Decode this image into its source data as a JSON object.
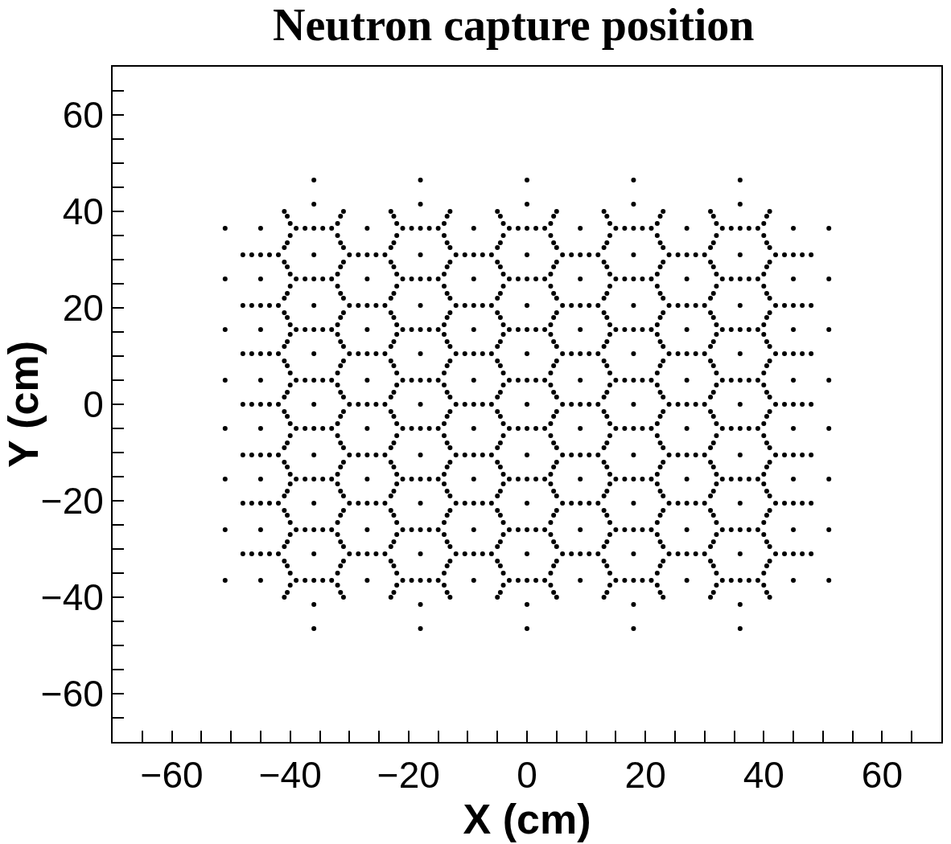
{
  "chart_data": {
    "type": "scatter",
    "title": "Neutron capture position",
    "xlabel": "X (cm)",
    "ylabel": "Y (cm)",
    "xlim": [
      -70,
      70
    ],
    "ylim": [
      -70,
      70
    ],
    "xticks": [
      {
        "value": -65,
        "label": null
      },
      -60,
      {
        "value": -55,
        "label": null
      },
      {
        "value": -50,
        "label": null
      },
      {
        "value": -45,
        "label": null
      },
      -40,
      {
        "value": -35,
        "label": null
      },
      {
        "value": -30,
        "label": null
      },
      {
        "value": -25,
        "label": null
      },
      -20,
      {
        "value": -15,
        "label": null
      },
      {
        "value": -10,
        "label": null
      },
      {
        "value": -5,
        "label": null
      },
      0,
      {
        "value": 5,
        "label": null
      },
      {
        "value": 10,
        "label": null
      },
      {
        "value": 15,
        "label": null
      },
      20,
      {
        "value": 25,
        "label": null
      },
      {
        "value": 30,
        "label": null
      },
      {
        "value": 35,
        "label": null
      },
      40,
      {
        "value": 45,
        "label": null
      },
      {
        "value": 50,
        "label": null
      },
      {
        "value": 55,
        "label": null
      },
      60,
      {
        "value": 65,
        "label": null
      }
    ],
    "yticks": [
      {
        "value": -65,
        "label": null
      },
      -60,
      {
        "value": -55,
        "label": null
      },
      {
        "value": -50,
        "label": null
      },
      {
        "value": -45,
        "label": null
      },
      -40,
      {
        "value": -35,
        "label": null
      },
      {
        "value": -30,
        "label": null
      },
      {
        "value": -25,
        "label": null
      },
      -20,
      {
        "value": -15,
        "label": null
      },
      {
        "value": -10,
        "label": null
      },
      {
        "value": -5,
        "label": null
      },
      0,
      {
        "value": 5,
        "label": null
      },
      {
        "value": 10,
        "label": null
      },
      {
        "value": 15,
        "label": null
      },
      20,
      {
        "value": 25,
        "label": null
      },
      {
        "value": 30,
        "label": null
      },
      {
        "value": 35,
        "label": null
      },
      40,
      {
        "value": 45,
        "label": null
      },
      {
        "value": 50,
        "label": null
      },
      {
        "value": 55,
        "label": null
      },
      60,
      {
        "value": 65,
        "label": null
      }
    ],
    "grid": false,
    "marker": "circle",
    "series": [
      {
        "color": "#000000",
        "x": [
          -48,
          -45,
          -42,
          -48,
          -45,
          -42,
          -48,
          -45,
          -42,
          -48,
          -45,
          -42,
          -48,
          -45,
          -42,
          -48,
          -45,
          -42,
          -48,
          -45,
          -42,
          -45,
          -45,
          -45,
          -45,
          -45,
          -45,
          -45,
          -45,
          -39,
          -36,
          -33,
          -39,
          -36,
          -33,
          -39,
          -36,
          -33,
          -39,
          -36,
          -33,
          -39,
          -36,
          -33,
          -39,
          -36,
          -33,
          -39,
          -36,
          -33,
          -39,
          -36,
          -33,
          -36,
          -36,
          -36,
          -36,
          -36,
          -36,
          -36,
          -36,
          -36,
          -30,
          -27,
          -24,
          -30,
          -27,
          -24,
          -30,
          -27,
          -24,
          -30,
          -27,
          -24,
          -30,
          -27,
          -24,
          -30,
          -27,
          -24,
          -30,
          -27,
          -24,
          -27,
          -27,
          -27,
          -27,
          -27,
          -27,
          -27,
          -27,
          -21,
          -18,
          -15,
          -21,
          -18,
          -15,
          -21,
          -18,
          -15,
          -21,
          -18,
          -15,
          -21,
          -18,
          -15,
          -21,
          -18,
          -15,
          -21,
          -18,
          -15,
          -21,
          -18,
          -15,
          -18,
          -18,
          -18,
          -18,
          -18,
          -18,
          -18,
          -18,
          -18,
          -12,
          -9,
          -6,
          -12,
          -9,
          -6,
          -12,
          -9,
          -6,
          -12,
          -9,
          -6,
          -12,
          -9,
          -6,
          -12,
          -9,
          -6,
          -12,
          -9,
          -6,
          -9,
          -9,
          -9,
          -9,
          -9,
          -9,
          -9,
          -9,
          -3,
          0,
          3,
          -3,
          0,
          3,
          -3,
          0,
          3,
          -3,
          0,
          3,
          -3,
          0,
          3,
          -3,
          0,
          3,
          -3,
          0,
          3,
          -3,
          0,
          3,
          0,
          0,
          0,
          0,
          0,
          0,
          0,
          0,
          0,
          6,
          9,
          12,
          6,
          9,
          12,
          6,
          9,
          12,
          6,
          9,
          12,
          6,
          9,
          12,
          6,
          9,
          12,
          6,
          9,
          12,
          9,
          9,
          9,
          9,
          9,
          9,
          9,
          9,
          15,
          18,
          21,
          15,
          18,
          21,
          15,
          18,
          21,
          15,
          18,
          21,
          15,
          18,
          21,
          15,
          18,
          21,
          15,
          18,
          21,
          15,
          18,
          21,
          18,
          18,
          18,
          18,
          18,
          18,
          18,
          18,
          18,
          24,
          27,
          30,
          24,
          27,
          30,
          24,
          27,
          30,
          24,
          27,
          30,
          24,
          27,
          30,
          24,
          27,
          30,
          24,
          27,
          30,
          27,
          27,
          27,
          27,
          27,
          27,
          27,
          27,
          33,
          36,
          39,
          33,
          36,
          39,
          33,
          36,
          39,
          33,
          36,
          39,
          33,
          36,
          39,
          33,
          36,
          39,
          33,
          36,
          39,
          33,
          36,
          39,
          36,
          36,
          36,
          36,
          36,
          36,
          36,
          36,
          36,
          42,
          45,
          48,
          42,
          45,
          48,
          42,
          45,
          48,
          42,
          45,
          48,
          42,
          45,
          48,
          42,
          45,
          48,
          42,
          45,
          48,
          45,
          45,
          45,
          45,
          45,
          45,
          45,
          45,
          -40.5,
          -40.5,
          -40.5,
          -40.5,
          -40.5,
          -40.5,
          -40.5,
          -40.5,
          -40.5,
          -40.5,
          -40.5,
          -40.5,
          -40.5,
          -40.5,
          -40.5,
          -40.5,
          -31.5,
          -31.5,
          -31.5,
          -31.5,
          -31.5,
          -31.5,
          -31.5,
          -31.5,
          -31.5,
          -31.5,
          -31.5,
          -31.5,
          -31.5,
          -31.5,
          -31.5,
          -31.5,
          -22.5,
          -22.5,
          -22.5,
          -22.5,
          -22.5,
          -22.5,
          -22.5,
          -22.5,
          -22.5,
          -22.5,
          -22.5,
          -22.5,
          -22.5,
          -22.5,
          -22.5,
          -22.5,
          -13.5,
          -13.5,
          -13.5,
          -13.5,
          -13.5,
          -13.5,
          -13.5,
          -13.5,
          -13.5,
          -13.5,
          -13.5,
          -13.5,
          -13.5,
          -13.5,
          -13.5,
          -13.5,
          -4.5,
          -4.5,
          -4.5,
          -4.5,
          -4.5,
          -4.5,
          -4.5,
          -4.5,
          -4.5,
          -4.5,
          -4.5,
          -4.5,
          -4.5,
          -4.5,
          -4.5,
          -4.5,
          4.5,
          4.5,
          4.5,
          4.5,
          4.5,
          4.5,
          4.5,
          4.5,
          4.5,
          4.5,
          4.5,
          4.5,
          4.5,
          4.5,
          4.5,
          4.5,
          13.5,
          13.5,
          13.5,
          13.5,
          13.5,
          13.5,
          13.5,
          13.5,
          13.5,
          13.5,
          13.5,
          13.5,
          13.5,
          13.5,
          13.5,
          13.5,
          22.5,
          22.5,
          22.5,
          22.5,
          22.5,
          22.5,
          22.5,
          22.5,
          22.5,
          22.5,
          22.5,
          22.5,
          22.5,
          22.5,
          22.5,
          22.5,
          31.5,
          31.5,
          31.5,
          31.5,
          31.5,
          31.5,
          31.5,
          31.5,
          31.5,
          31.5,
          31.5,
          31.5,
          31.5,
          31.5,
          31.5,
          31.5,
          40.5,
          40.5,
          40.5,
          40.5,
          40.5,
          40.5,
          40.5,
          40.5,
          40.5,
          40.5,
          40.5,
          40.5,
          40.5,
          40.5,
          40.5,
          40.5,
          -36,
          -36,
          -18,
          -18,
          0,
          0,
          18,
          18,
          36,
          36,
          -51,
          -51,
          -51,
          -51,
          -51,
          -51,
          -51,
          -51,
          51,
          51,
          51,
          51,
          51,
          51,
          51,
          51,
          -46.5,
          -43.5,
          -46.5,
          -43.5,
          -46.5,
          -43.5,
          -46.5,
          -43.5,
          -46.5,
          -43.5,
          -46.5,
          -43.5,
          -46.5,
          -43.5,
          -37.5,
          -34.5,
          -37.5,
          -34.5,
          -37.5,
          -34.5,
          -37.5,
          -34.5,
          -37.5,
          -34.5,
          -37.5,
          -34.5,
          -37.5,
          -34.5,
          -37.5,
          -34.5,
          -28.5,
          -25.5,
          -28.5,
          -25.5,
          -28.5,
          -25.5,
          -28.5,
          -25.5,
          -28.5,
          -25.5,
          -28.5,
          -25.5,
          -28.5,
          -25.5,
          -19.5,
          -16.5,
          -19.5,
          -16.5,
          -19.5,
          -16.5,
          -19.5,
          -16.5,
          -19.5,
          -16.5,
          -19.5,
          -16.5,
          -19.5,
          -16.5,
          -19.5,
          -16.5,
          -10.5,
          -7.5,
          -10.5,
          -7.5,
          -10.5,
          -7.5,
          -10.5,
          -7.5,
          -10.5,
          -7.5,
          -10.5,
          -7.5,
          -10.5,
          -7.5,
          -1.5,
          1.5,
          -1.5,
          1.5,
          -1.5,
          1.5,
          -1.5,
          1.5,
          -1.5,
          1.5,
          -1.5,
          1.5,
          -1.5,
          1.5,
          -1.5,
          1.5,
          7.5,
          10.5,
          7.5,
          10.5,
          7.5,
          10.5,
          7.5,
          10.5,
          7.5,
          10.5,
          7.5,
          10.5,
          7.5,
          10.5,
          16.5,
          19.5,
          16.5,
          19.5,
          16.5,
          19.5,
          16.5,
          19.5,
          16.5,
          19.5,
          16.5,
          19.5,
          16.5,
          19.5,
          16.5,
          19.5,
          25.5,
          28.5,
          25.5,
          28.5,
          25.5,
          28.5,
          25.5,
          28.5,
          25.5,
          28.5,
          25.5,
          28.5,
          25.5,
          28.5,
          34.5,
          37.5,
          34.5,
          37.5,
          34.5,
          37.5,
          34.5,
          37.5,
          34.5,
          37.5,
          34.5,
          37.5,
          34.5,
          37.5,
          34.5,
          37.5,
          43.5,
          46.5,
          43.5,
          46.5,
          43.5,
          46.5,
          43.5,
          46.5,
          43.5,
          46.5,
          43.5,
          46.5,
          43.5,
          46.5,
          -41,
          -41,
          -41,
          -41,
          -41,
          -41,
          -41,
          -41,
          -41,
          -41,
          -41,
          -41,
          -41,
          -41,
          -41,
          -41,
          -40,
          -40,
          -40,
          -40,
          -40,
          -40,
          -40,
          -40,
          -40,
          -40,
          -40,
          -40,
          -40,
          -40,
          -40,
          -40,
          -32,
          -32,
          -32,
          -32,
          -32,
          -32,
          -32,
          -32,
          -32,
          -32,
          -32,
          -32,
          -32,
          -32,
          -32,
          -32,
          -31,
          -31,
          -31,
          -31,
          -31,
          -31,
          -31,
          -31,
          -31,
          -31,
          -31,
          -31,
          -31,
          -31,
          -31,
          -31,
          -23,
          -23,
          -23,
          -23,
          -23,
          -23,
          -23,
          -23,
          -23,
          -23,
          -23,
          -23,
          -23,
          -23,
          -23,
          -23,
          -22,
          -22,
          -22,
          -22,
          -22,
          -22,
          -22,
          -22,
          -22,
          -22,
          -22,
          -22,
          -22,
          -22,
          -22,
          -22,
          -14,
          -14,
          -14,
          -14,
          -14,
          -14,
          -14,
          -14,
          -14,
          -14,
          -14,
          -14,
          -14,
          -14,
          -14,
          -14,
          -13,
          -13,
          -13,
          -13,
          -13,
          -13,
          -13,
          -13,
          -13,
          -13,
          -13,
          -13,
          -13,
          -13,
          -13,
          -13,
          -5,
          -5,
          -5,
          -5,
          -5,
          -5,
          -5,
          -5,
          -5,
          -5,
          -5,
          -5,
          -5,
          -5,
          -5,
          -5,
          -4,
          -4,
          -4,
          -4,
          -4,
          -4,
          -4,
          -4,
          -4,
          -4,
          -4,
          -4,
          -4,
          -4,
          -4,
          -4,
          4,
          4,
          4,
          4,
          4,
          4,
          4,
          4,
          4,
          4,
          4,
          4,
          4,
          4,
          4,
          4,
          5,
          5,
          5,
          5,
          5,
          5,
          5,
          5,
          5,
          5,
          5,
          5,
          5,
          5,
          5,
          5,
          13,
          13,
          13,
          13,
          13,
          13,
          13,
          13,
          13,
          13,
          13,
          13,
          13,
          13,
          13,
          13,
          14,
          14,
          14,
          14,
          14,
          14,
          14,
          14,
          14,
          14,
          14,
          14,
          14,
          14,
          14,
          14,
          22,
          22,
          22,
          22,
          22,
          22,
          22,
          22,
          22,
          22,
          22,
          22,
          22,
          22,
          22,
          22,
          23,
          23,
          23,
          23,
          23,
          23,
          23,
          23,
          23,
          23,
          23,
          23,
          23,
          23,
          23,
          23,
          31,
          31,
          31,
          31,
          31,
          31,
          31,
          31,
          31,
          31,
          31,
          31,
          31,
          31,
          31,
          31,
          32,
          32,
          32,
          32,
          32,
          32,
          32,
          32,
          32,
          32,
          32,
          32,
          32,
          32,
          32,
          32,
          40,
          40,
          40,
          40,
          40,
          40,
          40,
          40,
          40,
          40,
          40,
          40,
          40,
          40,
          40,
          40,
          41,
          41,
          41,
          41,
          41,
          41,
          41,
          41,
          41,
          41,
          41,
          41,
          41,
          41,
          41,
          41
        ],
        "values": [
          -31,
          -31,
          -31,
          -20.5,
          -20.5,
          -20.5,
          -10.5,
          -10.5,
          -10.5,
          0,
          0,
          0,
          10.5,
          10.5,
          10.5,
          20.5,
          20.5,
          20.5,
          31,
          31,
          31,
          -36.5,
          -26,
          -15.5,
          -5,
          5,
          15.5,
          26,
          36.5,
          -36.5,
          -36.5,
          -36.5,
          -26,
          -26,
          -26,
          -15.5,
          -15.5,
          -15.5,
          -5,
          -5,
          -5,
          5,
          5,
          5,
          15.5,
          15.5,
          15.5,
          26,
          26,
          26,
          36.5,
          36.5,
          36.5,
          -41.5,
          -31,
          -20.5,
          -10.5,
          0,
          10.5,
          20.5,
          31,
          41.5,
          -31,
          -31,
          -31,
          -20.5,
          -20.5,
          -20.5,
          -10.5,
          -10.5,
          -10.5,
          0,
          0,
          0,
          10.5,
          10.5,
          10.5,
          20.5,
          20.5,
          20.5,
          31,
          31,
          31,
          -36.5,
          -26,
          -15.5,
          -5,
          5,
          15.5,
          26,
          36.5,
          -36.5,
          -36.5,
          -36.5,
          -26,
          -26,
          -26,
          -15.5,
          -15.5,
          -15.5,
          -5,
          -5,
          -5,
          5,
          5,
          5,
          15.5,
          15.5,
          15.5,
          26,
          26,
          26,
          36.5,
          36.5,
          36.5,
          -41.5,
          -31,
          -20.5,
          -10.5,
          0,
          10.5,
          20.5,
          31,
          41.5,
          -31,
          -31,
          -31,
          -20.5,
          -20.5,
          -20.5,
          -10.5,
          -10.5,
          -10.5,
          0,
          0,
          0,
          10.5,
          10.5,
          10.5,
          20.5,
          20.5,
          20.5,
          31,
          31,
          31,
          -36.5,
          -26,
          -15.5,
          -5,
          5,
          15.5,
          26,
          36.5,
          -36.5,
          -36.5,
          -36.5,
          -26,
          -26,
          -26,
          -15.5,
          -15.5,
          -15.5,
          -5,
          -5,
          -5,
          5,
          5,
          5,
          15.5,
          15.5,
          15.5,
          26,
          26,
          26,
          36.5,
          36.5,
          36.5,
          -41.5,
          -31,
          -20.5,
          -10.5,
          0,
          10.5,
          20.5,
          31,
          41.5,
          -31,
          -31,
          -31,
          -20.5,
          -20.5,
          -20.5,
          -10.5,
          -10.5,
          -10.5,
          0,
          0,
          0,
          10.5,
          10.5,
          10.5,
          20.5,
          20.5,
          20.5,
          31,
          31,
          31,
          -36.5,
          -26,
          -15.5,
          -5,
          5,
          15.5,
          26,
          36.5,
          -36.5,
          -36.5,
          -36.5,
          -26,
          -26,
          -26,
          -15.5,
          -15.5,
          -15.5,
          -5,
          -5,
          -5,
          5,
          5,
          5,
          15.5,
          15.5,
          15.5,
          26,
          26,
          26,
          36.5,
          36.5,
          36.5,
          -41.5,
          -31,
          -20.5,
          -10.5,
          0,
          10.5,
          20.5,
          31,
          41.5,
          -31,
          -31,
          -31,
          -20.5,
          -20.5,
          -20.5,
          -10.5,
          -10.5,
          -10.5,
          0,
          0,
          0,
          10.5,
          10.5,
          10.5,
          20.5,
          20.5,
          20.5,
          31,
          31,
          31,
          -36.5,
          -26,
          -15.5,
          -5,
          5,
          15.5,
          26,
          36.5,
          -36.5,
          -36.5,
          -36.5,
          -26,
          -26,
          -26,
          -15.5,
          -15.5,
          -15.5,
          -5,
          -5,
          -5,
          5,
          5,
          5,
          15.5,
          15.5,
          15.5,
          26,
          26,
          26,
          36.5,
          36.5,
          36.5,
          -41.5,
          -31,
          -20.5,
          -10.5,
          0,
          10.5,
          20.5,
          31,
          41.5,
          -31,
          -31,
          -31,
          -20.5,
          -20.5,
          -20.5,
          -10.5,
          -10.5,
          -10.5,
          0,
          0,
          0,
          10.5,
          10.5,
          10.5,
          20.5,
          20.5,
          20.5,
          31,
          31,
          31,
          -36.5,
          -26,
          -15.5,
          -5,
          5,
          15.5,
          26,
          36.5,
          -39,
          -33.5,
          -28.5,
          -23,
          -18,
          -13,
          -8,
          -2.5,
          2.5,
          8,
          13,
          18,
          23,
          28.5,
          33.5,
          39,
          -39,
          -33.5,
          -28.5,
          -23,
          -18,
          -13,
          -8,
          -2.5,
          2.5,
          8,
          13,
          18,
          23,
          28.5,
          33.5,
          39,
          -39,
          -33.5,
          -28.5,
          -23,
          -18,
          -13,
          -8,
          -2.5,
          2.5,
          8,
          13,
          18,
          23,
          28.5,
          33.5,
          39,
          -39,
          -33.5,
          -28.5,
          -23,
          -18,
          -13,
          -8,
          -2.5,
          2.5,
          8,
          13,
          18,
          23,
          28.5,
          33.5,
          39,
          -39,
          -33.5,
          -28.5,
          -23,
          -18,
          -13,
          -8,
          -2.5,
          2.5,
          8,
          13,
          18,
          23,
          28.5,
          33.5,
          39,
          -39,
          -33.5,
          -28.5,
          -23,
          -18,
          -13,
          -8,
          -2.5,
          2.5,
          8,
          13,
          18,
          23,
          28.5,
          33.5,
          39,
          -39,
          -33.5,
          -28.5,
          -23,
          -18,
          -13,
          -8,
          -2.5,
          2.5,
          8,
          13,
          18,
          23,
          28.5,
          33.5,
          39,
          -39,
          -33.5,
          -28.5,
          -23,
          -18,
          -13,
          -8,
          -2.5,
          2.5,
          8,
          13,
          18,
          23,
          28.5,
          33.5,
          39,
          -39,
          -33.5,
          -28.5,
          -23,
          -18,
          -13,
          -8,
          -2.5,
          2.5,
          8,
          13,
          18,
          23,
          28.5,
          33.5,
          39,
          -39,
          -33.5,
          -28.5,
          -23,
          -18,
          -13,
          -8,
          -2.5,
          2.5,
          8,
          13,
          18,
          23,
          28.5,
          33.5,
          39,
          -46.5,
          46.5,
          -46.5,
          46.5,
          -46.5,
          46.5,
          -46.5,
          46.5,
          -46.5,
          46.5,
          -36.5,
          -26,
          -15.5,
          -5,
          5,
          15.5,
          26,
          36.5,
          -36.5,
          -26,
          -15.5,
          -5,
          5,
          15.5,
          26,
          36.5,
          -31,
          -31,
          -20.5,
          -20.5,
          -10.5,
          -10.5,
          0,
          0,
          10.5,
          10.5,
          20.5,
          20.5,
          31,
          31,
          -36.5,
          -36.5,
          -26,
          -26,
          -15.5,
          -15.5,
          -5,
          -5,
          5,
          5,
          15.5,
          15.5,
          26,
          26,
          36.5,
          36.5,
          -31,
          -31,
          -20.5,
          -20.5,
          -10.5,
          -10.5,
          0,
          0,
          10.5,
          10.5,
          20.5,
          20.5,
          31,
          31,
          -36.5,
          -36.5,
          -26,
          -26,
          -15.5,
          -15.5,
          -5,
          -5,
          5,
          5,
          15.5,
          15.5,
          26,
          26,
          36.5,
          36.5,
          -31,
          -31,
          -20.5,
          -20.5,
          -10.5,
          -10.5,
          0,
          0,
          10.5,
          10.5,
          20.5,
          20.5,
          31,
          31,
          -36.5,
          -36.5,
          -26,
          -26,
          -15.5,
          -15.5,
          -5,
          -5,
          5,
          5,
          15.5,
          15.5,
          26,
          26,
          36.5,
          36.5,
          -31,
          -31,
          -20.5,
          -20.5,
          -10.5,
          -10.5,
          0,
          0,
          10.5,
          10.5,
          20.5,
          20.5,
          31,
          31,
          -36.5,
          -36.5,
          -26,
          -26,
          -15.5,
          -15.5,
          -5,
          -5,
          5,
          5,
          15.5,
          15.5,
          26,
          26,
          36.5,
          36.5,
          -31,
          -31,
          -20.5,
          -20.5,
          -10.5,
          -10.5,
          0,
          0,
          10.5,
          10.5,
          20.5,
          20.5,
          31,
          31,
          -36.5,
          -36.5,
          -26,
          -26,
          -15.5,
          -15.5,
          -5,
          -5,
          5,
          5,
          15.5,
          15.5,
          26,
          26,
          36.5,
          36.5,
          -31,
          -31,
          -20.5,
          -20.5,
          -10.5,
          -10.5,
          0,
          0,
          10.5,
          10.5,
          20.5,
          20.5,
          31,
          31,
          -40,
          -32.5,
          -29.5,
          -22,
          -19,
          -12,
          -9,
          -1.5,
          1.5,
          9,
          12,
          19,
          22,
          29.5,
          32.5,
          40,
          -37.5,
          -35,
          -27,
          -24.5,
          -16.5,
          -14.5,
          -6.5,
          -4,
          4,
          6.5,
          14.5,
          16.5,
          24.5,
          27,
          35,
          37.5,
          -37.5,
          -35,
          -27,
          -24.5,
          -16.5,
          -14.5,
          -6.5,
          -4,
          4,
          6.5,
          14.5,
          16.5,
          24.5,
          27,
          35,
          37.5,
          -40,
          -32.5,
          -29.5,
          -22,
          -19,
          -12,
          -9,
          -1.5,
          1.5,
          9,
          12,
          19,
          22,
          29.5,
          32.5,
          40,
          -40,
          -32.5,
          -29.5,
          -22,
          -19,
          -12,
          -9,
          -1.5,
          1.5,
          9,
          12,
          19,
          22,
          29.5,
          32.5,
          40,
          -37.5,
          -35,
          -27,
          -24.5,
          -16.5,
          -14.5,
          -6.5,
          -4,
          4,
          6.5,
          14.5,
          16.5,
          24.5,
          27,
          35,
          37.5,
          -37.5,
          -35,
          -27,
          -24.5,
          -16.5,
          -14.5,
          -6.5,
          -4,
          4,
          6.5,
          14.5,
          16.5,
          24.5,
          27,
          35,
          37.5,
          -40,
          -32.5,
          -29.5,
          -22,
          -19,
          -12,
          -9,
          -1.5,
          1.5,
          9,
          12,
          19,
          22,
          29.5,
          32.5,
          40,
          -40,
          -32.5,
          -29.5,
          -22,
          -19,
          -12,
          -9,
          -1.5,
          1.5,
          9,
          12,
          19,
          22,
          29.5,
          32.5,
          40,
          -37.5,
          -35,
          -27,
          -24.5,
          -16.5,
          -14.5,
          -6.5,
          -4,
          4,
          6.5,
          14.5,
          16.5,
          24.5,
          27,
          35,
          37.5,
          -37.5,
          -35,
          -27,
          -24.5,
          -16.5,
          -14.5,
          -6.5,
          -4,
          4,
          6.5,
          14.5,
          16.5,
          24.5,
          27,
          35,
          37.5,
          -40,
          -32.5,
          -29.5,
          -22,
          -19,
          -12,
          -9,
          -1.5,
          1.5,
          9,
          12,
          19,
          22,
          29.5,
          32.5,
          40,
          -40,
          -32.5,
          -29.5,
          -22,
          -19,
          -12,
          -9,
          -1.5,
          1.5,
          9,
          12,
          19,
          22,
          29.5,
          32.5,
          40,
          -37.5,
          -35,
          -27,
          -24.5,
          -16.5,
          -14.5,
          -6.5,
          -4,
          4,
          6.5,
          14.5,
          16.5,
          24.5,
          27,
          35,
          37.5,
          -37.5,
          -35,
          -27,
          -24.5,
          -16.5,
          -14.5,
          -6.5,
          -4,
          4,
          6.5,
          14.5,
          16.5,
          24.5,
          27,
          35,
          37.5,
          -40,
          -32.5,
          -29.5,
          -22,
          -19,
          -12,
          -9,
          -1.5,
          1.5,
          9,
          12,
          19,
          22,
          29.5,
          32.5,
          40,
          -40,
          -32.5,
          -29.5,
          -22,
          -19,
          -12,
          -9,
          -1.5,
          1.5,
          9,
          12,
          19,
          22,
          29.5,
          32.5,
          40,
          -37.5,
          -35,
          -27,
          -24.5,
          -16.5,
          -14.5,
          -6.5,
          -4,
          4,
          6.5,
          14.5,
          16.5,
          24.5,
          27,
          35,
          37.5,
          -37.5,
          -35,
          -27,
          -24.5,
          -16.5,
          -14.5,
          -6.5,
          -4,
          4,
          6.5,
          14.5,
          16.5,
          24.5,
          27,
          35,
          37.5,
          -40,
          -32.5,
          -29.5,
          -22,
          -19,
          -12,
          -9,
          -1.5,
          1.5,
          9,
          12,
          19,
          22,
          29.5,
          32.5,
          40
        ]
      }
    ]
  }
}
